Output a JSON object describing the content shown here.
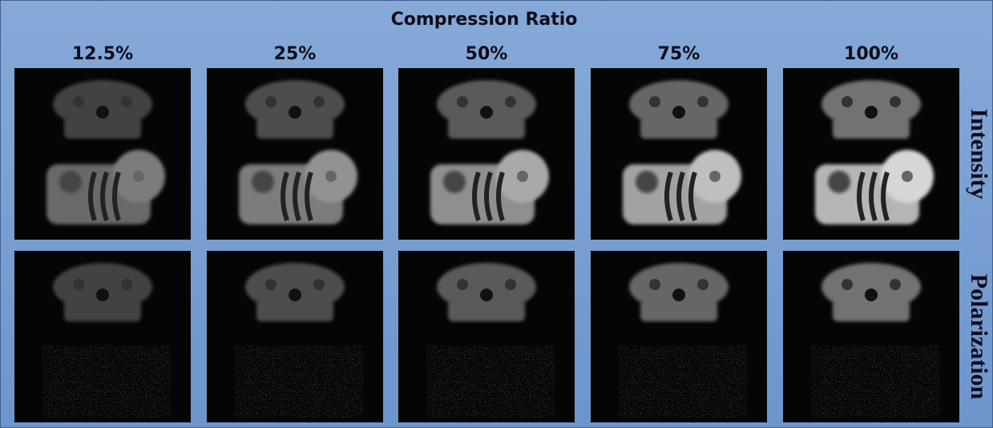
{
  "header": {
    "title": "Compression Ratio",
    "columns": [
      "12.5%",
      "25%",
      "50%",
      "75%",
      "100%"
    ]
  },
  "rows": [
    "Intensity",
    "Polarization"
  ]
}
